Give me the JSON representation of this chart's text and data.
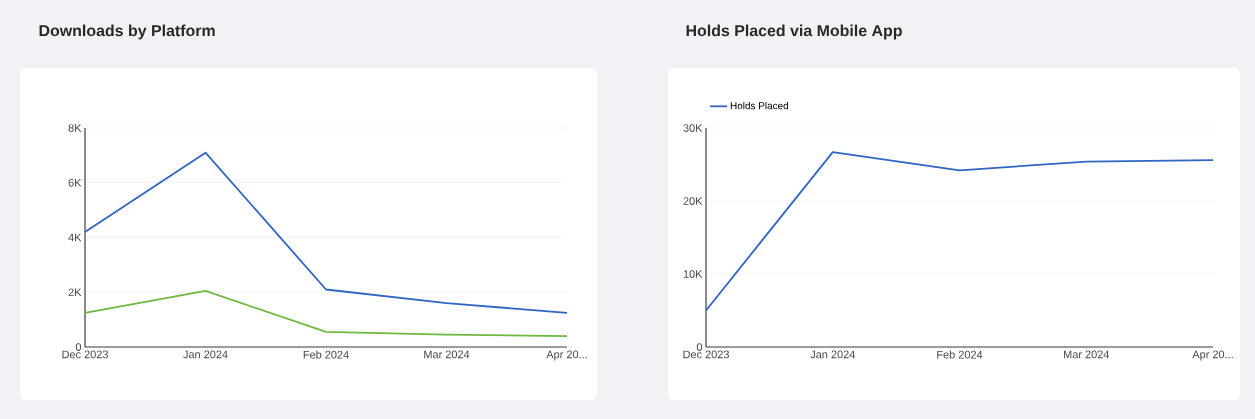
{
  "chart_data": [
    {
      "type": "line",
      "title": "Downloads by Platform",
      "categories": [
        "Dec 2023",
        "Jan 2024",
        "Feb 2024",
        "Mar 2024",
        "Apr 20..."
      ],
      "series": [
        {
          "color": "#2f66c4",
          "values": [
            4200,
            7100,
            2100,
            1600,
            1250
          ]
        },
        {
          "color": "#6fb83f",
          "values": [
            1250,
            2050,
            550,
            450,
            400
          ]
        }
      ],
      "ylim": [
        0,
        8000
      ],
      "yticks": [
        {
          "value": 0,
          "label": "0"
        },
        {
          "value": 2000,
          "label": "2K"
        },
        {
          "value": 4000,
          "label": "4K"
        },
        {
          "value": 6000,
          "label": "6K"
        },
        {
          "value": 8000,
          "label": "8K"
        }
      ],
      "grid": "y",
      "legend": false,
      "marker": "none"
    },
    {
      "type": "line",
      "title": "Holds Placed via Mobile App",
      "categories": [
        "Dec 2023",
        "Jan 2024",
        "Feb 2024",
        "Mar 2024",
        "Apr 20..."
      ],
      "series": [
        {
          "name": "Holds Placed",
          "color": "#2f66c4",
          "values": [
            5000,
            26700,
            24200,
            25400,
            25600
          ]
        }
      ],
      "ylim": [
        0,
        30000
      ],
      "yticks": [
        {
          "value": 0,
          "label": "0"
        },
        {
          "value": 10000,
          "label": "10K"
        },
        {
          "value": 20000,
          "label": "20K"
        },
        {
          "value": 30000,
          "label": "30K"
        }
      ],
      "grid": "y",
      "legend": "top left",
      "marker": "none"
    }
  ]
}
